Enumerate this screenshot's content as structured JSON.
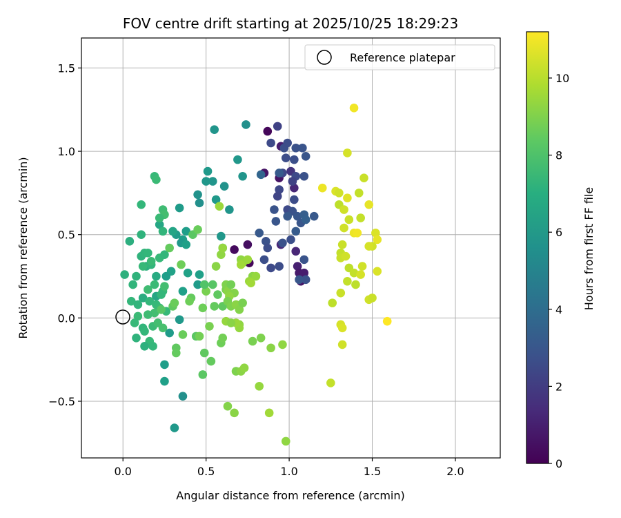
{
  "chart_data": {
    "type": "scatter",
    "title": "FOV centre drift starting at 2025/10/25 18:29:23",
    "xlabel": "Angular distance from reference (arcmin)",
    "ylabel": "Rotation from reference (arcmin)",
    "xlim": [
      -0.25,
      2.27
    ],
    "ylim": [
      -0.84,
      1.68
    ],
    "xticks": [
      0.0,
      0.5,
      1.0,
      1.5,
      2.0
    ],
    "xtick_labels": [
      "0.0",
      "0.5",
      "1.0",
      "1.5",
      "2.0"
    ],
    "yticks": [
      -0.5,
      0.0,
      0.5,
      1.0,
      1.5
    ],
    "ytick_labels": [
      "−0.5",
      "0.0",
      "0.5",
      "1.0",
      "1.5"
    ],
    "grid": true,
    "legend": {
      "position": "top-right",
      "entries": [
        "Reference platepar"
      ]
    },
    "reference_point": {
      "x": 0.0,
      "y": 0.0,
      "label": "Reference platepar"
    },
    "colorbar": {
      "label": "Hours from first FF file",
      "colormap": "viridis",
      "range": [
        0,
        11.2
      ],
      "ticks": [
        0,
        2,
        4,
        6,
        8,
        10
      ],
      "tick_labels": [
        "0",
        "2",
        "4",
        "6",
        "8",
        "10"
      ]
    },
    "points": [
      {
        "x": 0.87,
        "y": 1.12,
        "h": 0.2
      },
      {
        "x": 0.95,
        "y": 1.03,
        "h": 0.9
      },
      {
        "x": 0.94,
        "y": 0.84,
        "h": 0.6
      },
      {
        "x": 1.03,
        "y": 0.78,
        "h": 1.2
      },
      {
        "x": 1.01,
        "y": 0.88,
        "h": 1.7
      },
      {
        "x": 1.04,
        "y": 0.4,
        "h": 1.2
      },
      {
        "x": 0.95,
        "y": 0.44,
        "h": 1.3
      },
      {
        "x": 1.05,
        "y": 0.31,
        "h": 1.0
      },
      {
        "x": 1.06,
        "y": 0.27,
        "h": 0.8
      },
      {
        "x": 1.09,
        "y": 0.27,
        "h": 0.9
      },
      {
        "x": 1.07,
        "y": 0.22,
        "h": 0.7
      },
      {
        "x": 0.75,
        "y": 0.44,
        "h": 0.4
      },
      {
        "x": 0.67,
        "y": 0.41,
        "h": 0.3
      },
      {
        "x": 0.76,
        "y": 0.33,
        "h": 0.2
      },
      {
        "x": 0.85,
        "y": 0.87,
        "h": 0.6
      },
      {
        "x": 0.93,
        "y": 1.15,
        "h": 2.2
      },
      {
        "x": 0.89,
        "y": 1.05,
        "h": 2.5
      },
      {
        "x": 0.97,
        "y": 1.02,
        "h": 2.7
      },
      {
        "x": 0.99,
        "y": 1.05,
        "h": 2.6
      },
      {
        "x": 1.04,
        "y": 1.02,
        "h": 2.8
      },
      {
        "x": 1.08,
        "y": 1.02,
        "h": 2.9
      },
      {
        "x": 1.03,
        "y": 0.95,
        "h": 2.7
      },
      {
        "x": 0.98,
        "y": 0.96,
        "h": 2.6
      },
      {
        "x": 0.96,
        "y": 0.87,
        "h": 2.4
      },
      {
        "x": 1.04,
        "y": 0.85,
        "h": 2.5
      },
      {
        "x": 1.09,
        "y": 0.85,
        "h": 2.8
      },
      {
        "x": 1.02,
        "y": 0.82,
        "h": 2.2
      },
      {
        "x": 0.94,
        "y": 0.77,
        "h": 2.4
      },
      {
        "x": 0.93,
        "y": 0.73,
        "h": 2.3
      },
      {
        "x": 0.91,
        "y": 0.65,
        "h": 2.9
      },
      {
        "x": 0.99,
        "y": 0.65,
        "h": 2.5
      },
      {
        "x": 1.03,
        "y": 0.71,
        "h": 2.6
      },
      {
        "x": 1.02,
        "y": 0.64,
        "h": 2.8
      },
      {
        "x": 0.99,
        "y": 0.61,
        "h": 3.1
      },
      {
        "x": 1.05,
        "y": 0.61,
        "h": 3.0
      },
      {
        "x": 1.09,
        "y": 0.62,
        "h": 3.3
      },
      {
        "x": 1.07,
        "y": 0.57,
        "h": 3.0
      },
      {
        "x": 1.1,
        "y": 0.59,
        "h": 3.4
      },
      {
        "x": 1.15,
        "y": 0.61,
        "h": 3.1
      },
      {
        "x": 0.92,
        "y": 0.58,
        "h": 3.0
      },
      {
        "x": 1.04,
        "y": 0.52,
        "h": 3.2
      },
      {
        "x": 1.01,
        "y": 0.47,
        "h": 2.7
      },
      {
        "x": 0.82,
        "y": 0.51,
        "h": 3.1
      },
      {
        "x": 0.86,
        "y": 0.46,
        "h": 2.8
      },
      {
        "x": 0.87,
        "y": 0.42,
        "h": 2.6
      },
      {
        "x": 0.96,
        "y": 0.45,
        "h": 2.8
      },
      {
        "x": 0.85,
        "y": 0.35,
        "h": 2.7
      },
      {
        "x": 0.89,
        "y": 0.3,
        "h": 2.5
      },
      {
        "x": 0.94,
        "y": 0.31,
        "h": 2.6
      },
      {
        "x": 1.09,
        "y": 0.35,
        "h": 2.9
      },
      {
        "x": 1.1,
        "y": 0.23,
        "h": 2.8
      },
      {
        "x": 1.06,
        "y": 0.23,
        "h": 3.0
      },
      {
        "x": 1.1,
        "y": 0.97,
        "h": 3.0
      },
      {
        "x": 0.83,
        "y": 0.86,
        "h": 3.6
      },
      {
        "x": 0.94,
        "y": 0.87,
        "h": 3.2
      },
      {
        "x": 0.74,
        "y": 1.16,
        "h": 5.6
      },
      {
        "x": 0.55,
        "y": 1.13,
        "h": 5.8
      },
      {
        "x": 0.69,
        "y": 0.95,
        "h": 5.9
      },
      {
        "x": 0.51,
        "y": 0.88,
        "h": 6.0
      },
      {
        "x": 0.54,
        "y": 0.82,
        "h": 5.8
      },
      {
        "x": 0.5,
        "y": 0.82,
        "h": 5.9
      },
      {
        "x": 0.61,
        "y": 0.79,
        "h": 5.7
      },
      {
        "x": 0.72,
        "y": 0.85,
        "h": 5.8
      },
      {
        "x": 0.45,
        "y": 0.74,
        "h": 5.7
      },
      {
        "x": 0.56,
        "y": 0.71,
        "h": 6.0
      },
      {
        "x": 0.46,
        "y": 0.69,
        "h": 5.6
      },
      {
        "x": 0.64,
        "y": 0.65,
        "h": 5.8
      },
      {
        "x": 0.34,
        "y": 0.66,
        "h": 6.1
      },
      {
        "x": 0.59,
        "y": 0.49,
        "h": 5.9
      },
      {
        "x": 0.38,
        "y": 0.52,
        "h": 6.2
      },
      {
        "x": 0.6,
        "y": 0.42,
        "h": 6.0
      },
      {
        "x": 0.32,
        "y": 0.5,
        "h": 6.1
      },
      {
        "x": 0.36,
        "y": 0.47,
        "h": 6.2
      },
      {
        "x": 0.35,
        "y": 0.45,
        "h": 6.0
      },
      {
        "x": 0.38,
        "y": 0.44,
        "h": 6.3
      },
      {
        "x": 0.3,
        "y": 0.52,
        "h": 6.5
      },
      {
        "x": 0.22,
        "y": 0.56,
        "h": 6.6
      },
      {
        "x": 0.29,
        "y": 0.28,
        "h": 6.4
      },
      {
        "x": 0.39,
        "y": 0.27,
        "h": 6.4
      },
      {
        "x": 0.36,
        "y": 0.16,
        "h": 6.3
      },
      {
        "x": 0.26,
        "y": 0.25,
        "h": 6.2
      },
      {
        "x": 0.46,
        "y": 0.26,
        "h": 6.3
      },
      {
        "x": 0.45,
        "y": 0.2,
        "h": 6.1
      },
      {
        "x": 0.34,
        "y": -0.01,
        "h": 6.0
      },
      {
        "x": 0.28,
        "y": -0.09,
        "h": 6.1
      },
      {
        "x": 0.25,
        "y": -0.28,
        "h": 6.2
      },
      {
        "x": 0.25,
        "y": -0.38,
        "h": 6.3
      },
      {
        "x": 0.36,
        "y": -0.47,
        "h": 5.6
      },
      {
        "x": 0.31,
        "y": -0.66,
        "h": 6.0
      },
      {
        "x": 0.2,
        "y": 0.13,
        "h": 6.6
      },
      {
        "x": 0.12,
        "y": 0.12,
        "h": 6.9
      },
      {
        "x": 0.14,
        "y": 0.31,
        "h": 7.0
      },
      {
        "x": 0.2,
        "y": 0.25,
        "h": 6.8
      },
      {
        "x": 0.19,
        "y": 0.85,
        "h": 7.5
      },
      {
        "x": 0.2,
        "y": 0.83,
        "h": 7.6
      },
      {
        "x": 0.11,
        "y": 0.68,
        "h": 7.4
      },
      {
        "x": 0.24,
        "y": 0.65,
        "h": 7.7
      },
      {
        "x": 0.25,
        "y": 0.62,
        "h": 7.8
      },
      {
        "x": 0.22,
        "y": 0.6,
        "h": 7.6
      },
      {
        "x": 0.11,
        "y": 0.5,
        "h": 7.2
      },
      {
        "x": 0.04,
        "y": 0.46,
        "h": 7.0
      },
      {
        "x": 0.24,
        "y": 0.52,
        "h": 7.3
      },
      {
        "x": 0.11,
        "y": 0.37,
        "h": 7.2
      },
      {
        "x": 0.13,
        "y": 0.39,
        "h": 7.3
      },
      {
        "x": 0.15,
        "y": 0.39,
        "h": 7.4
      },
      {
        "x": 0.17,
        "y": 0.32,
        "h": 7.3
      },
      {
        "x": 0.22,
        "y": 0.36,
        "h": 7.5
      },
      {
        "x": 0.25,
        "y": 0.38,
        "h": 7.4
      },
      {
        "x": 0.17,
        "y": 0.34,
        "h": 7.6
      },
      {
        "x": 0.01,
        "y": 0.26,
        "h": 7.1
      },
      {
        "x": 0.08,
        "y": 0.25,
        "h": 7.2
      },
      {
        "x": 0.06,
        "y": 0.2,
        "h": 7.3
      },
      {
        "x": 0.12,
        "y": 0.31,
        "h": 7.5
      },
      {
        "x": 0.15,
        "y": 0.17,
        "h": 7.7
      },
      {
        "x": 0.19,
        "y": 0.2,
        "h": 7.6
      },
      {
        "x": 0.24,
        "y": 0.16,
        "h": 7.5
      },
      {
        "x": 0.25,
        "y": 0.19,
        "h": 7.8
      },
      {
        "x": 0.23,
        "y": 0.14,
        "h": 7.4
      },
      {
        "x": 0.05,
        "y": 0.1,
        "h": 7.4
      },
      {
        "x": 0.09,
        "y": 0.08,
        "h": 7.3
      },
      {
        "x": 0.16,
        "y": 0.1,
        "h": 7.4
      },
      {
        "x": 0.2,
        "y": 0.08,
        "h": 7.5
      },
      {
        "x": 0.22,
        "y": 0.06,
        "h": 7.6
      },
      {
        "x": 0.26,
        "y": 0.04,
        "h": 7.5
      },
      {
        "x": 0.19,
        "y": 0.03,
        "h": 7.8
      },
      {
        "x": 0.15,
        "y": 0.02,
        "h": 7.7
      },
      {
        "x": 0.09,
        "y": 0.01,
        "h": 7.6
      },
      {
        "x": 0.07,
        "y": -0.03,
        "h": 7.5
      },
      {
        "x": 0.12,
        "y": -0.06,
        "h": 7.3
      },
      {
        "x": 0.13,
        "y": -0.08,
        "h": 7.4
      },
      {
        "x": 0.18,
        "y": -0.05,
        "h": 7.6
      },
      {
        "x": 0.21,
        "y": -0.03,
        "h": 7.8
      },
      {
        "x": 0.24,
        "y": -0.06,
        "h": 7.9
      },
      {
        "x": 0.16,
        "y": -0.14,
        "h": 7.5
      },
      {
        "x": 0.08,
        "y": -0.12,
        "h": 7.2
      },
      {
        "x": 0.13,
        "y": -0.17,
        "h": 7.1
      },
      {
        "x": 0.18,
        "y": -0.17,
        "h": 7.4
      },
      {
        "x": 0.23,
        "y": 0.05,
        "h": 8.2
      },
      {
        "x": 0.3,
        "y": 0.07,
        "h": 8.4
      },
      {
        "x": 0.31,
        "y": 0.09,
        "h": 8.6
      },
      {
        "x": 0.28,
        "y": 0.42,
        "h": 8.5
      },
      {
        "x": 0.42,
        "y": 0.5,
        "h": 8.3
      },
      {
        "x": 0.45,
        "y": 0.53,
        "h": 8.6
      },
      {
        "x": 0.35,
        "y": 0.32,
        "h": 8.7
      },
      {
        "x": 0.41,
        "y": 0.12,
        "h": 8.5
      },
      {
        "x": 0.4,
        "y": 0.1,
        "h": 8.7
      },
      {
        "x": 0.36,
        "y": -0.1,
        "h": 8.6
      },
      {
        "x": 0.32,
        "y": -0.18,
        "h": 8.4
      },
      {
        "x": 0.32,
        "y": -0.21,
        "h": 8.5
      },
      {
        "x": 0.44,
        "y": -0.11,
        "h": 8.3
      },
      {
        "x": 0.46,
        "y": -0.11,
        "h": 8.8
      },
      {
        "x": 0.48,
        "y": 0.06,
        "h": 8.7
      },
      {
        "x": 0.49,
        "y": -0.21,
        "h": 8.4
      },
      {
        "x": 0.48,
        "y": -0.34,
        "h": 8.3
      },
      {
        "x": 0.53,
        "y": -0.26,
        "h": 8.5
      },
      {
        "x": 0.52,
        "y": -0.05,
        "h": 8.9
      },
      {
        "x": 0.5,
        "y": 0.16,
        "h": 8.9
      },
      {
        "x": 0.49,
        "y": 0.2,
        "h": 8.1
      },
      {
        "x": 0.54,
        "y": 0.2,
        "h": 8.2
      },
      {
        "x": 0.57,
        "y": 0.14,
        "h": 8.4
      },
      {
        "x": 0.55,
        "y": 0.07,
        "h": 8.5
      },
      {
        "x": 0.6,
        "y": 0.07,
        "h": 8.4
      },
      {
        "x": 0.62,
        "y": 0.17,
        "h": 8.9
      },
      {
        "x": 0.62,
        "y": 0.2,
        "h": 9.0
      },
      {
        "x": 0.63,
        "y": 0.16,
        "h": 9.2
      },
      {
        "x": 0.65,
        "y": 0.2,
        "h": 8.8
      },
      {
        "x": 0.67,
        "y": 0.15,
        "h": 9.1
      },
      {
        "x": 0.64,
        "y": 0.13,
        "h": 9.3
      },
      {
        "x": 0.63,
        "y": 0.1,
        "h": 8.9
      },
      {
        "x": 0.65,
        "y": 0.07,
        "h": 9.0
      },
      {
        "x": 0.68,
        "y": 0.08,
        "h": 9.2
      },
      {
        "x": 0.7,
        "y": 0.05,
        "h": 9.1
      },
      {
        "x": 0.72,
        "y": 0.09,
        "h": 8.9
      },
      {
        "x": 0.7,
        "y": -0.04,
        "h": 9.3
      },
      {
        "x": 0.7,
        "y": -0.06,
        "h": 9.4
      },
      {
        "x": 0.68,
        "y": -0.03,
        "h": 9.5
      },
      {
        "x": 0.62,
        "y": -0.02,
        "h": 9.4
      },
      {
        "x": 0.65,
        "y": -0.03,
        "h": 9.2
      },
      {
        "x": 0.59,
        "y": -0.15,
        "h": 8.7
      },
      {
        "x": 0.6,
        "y": -0.12,
        "h": 8.8
      },
      {
        "x": 0.68,
        "y": -0.32,
        "h": 9.0
      },
      {
        "x": 0.71,
        "y": -0.32,
        "h": 9.2
      },
      {
        "x": 0.73,
        "y": -0.3,
        "h": 9.3
      },
      {
        "x": 0.63,
        "y": -0.53,
        "h": 9.1
      },
      {
        "x": 0.67,
        "y": -0.57,
        "h": 9.2
      },
      {
        "x": 0.82,
        "y": -0.41,
        "h": 9.4
      },
      {
        "x": 0.88,
        "y": -0.57,
        "h": 9.6
      },
      {
        "x": 0.98,
        "y": -0.74,
        "h": 9.3
      },
      {
        "x": 0.78,
        "y": -0.14,
        "h": 8.9
      },
      {
        "x": 0.83,
        "y": -0.12,
        "h": 9.0
      },
      {
        "x": 0.89,
        "y": -0.18,
        "h": 9.2
      },
      {
        "x": 0.96,
        "y": -0.16,
        "h": 9.3
      },
      {
        "x": 0.58,
        "y": 0.67,
        "h": 9.5
      },
      {
        "x": 0.59,
        "y": 0.38,
        "h": 9.3
      },
      {
        "x": 0.6,
        "y": 0.42,
        "h": 9.4
      },
      {
        "x": 0.56,
        "y": 0.31,
        "h": 9.2
      },
      {
        "x": 0.71,
        "y": 0.35,
        "h": 9.3
      },
      {
        "x": 0.72,
        "y": 0.33,
        "h": 9.4
      },
      {
        "x": 0.71,
        "y": 0.32,
        "h": 9.6
      },
      {
        "x": 0.75,
        "y": 0.35,
        "h": 9.5
      },
      {
        "x": 0.78,
        "y": 0.25,
        "h": 9.2
      },
      {
        "x": 0.8,
        "y": 0.25,
        "h": 9.4
      },
      {
        "x": 0.76,
        "y": 0.22,
        "h": 9.5
      },
      {
        "x": 0.77,
        "y": 0.21,
        "h": 9.6
      },
      {
        "x": 1.39,
        "y": 1.26,
        "h": 11.0
      },
      {
        "x": 1.35,
        "y": 0.99,
        "h": 10.5
      },
      {
        "x": 1.2,
        "y": 0.78,
        "h": 10.9
      },
      {
        "x": 1.28,
        "y": 0.76,
        "h": 10.6
      },
      {
        "x": 1.3,
        "y": 0.75,
        "h": 10.4
      },
      {
        "x": 1.35,
        "y": 0.72,
        "h": 10.7
      },
      {
        "x": 1.45,
        "y": 0.84,
        "h": 10.3
      },
      {
        "x": 1.42,
        "y": 0.75,
        "h": 10.2
      },
      {
        "x": 1.3,
        "y": 0.68,
        "h": 10.1
      },
      {
        "x": 1.33,
        "y": 0.65,
        "h": 10.4
      },
      {
        "x": 1.48,
        "y": 0.68,
        "h": 10.8
      },
      {
        "x": 1.36,
        "y": 0.59,
        "h": 10.3
      },
      {
        "x": 1.43,
        "y": 0.6,
        "h": 10.2
      },
      {
        "x": 1.33,
        "y": 0.54,
        "h": 10.4
      },
      {
        "x": 1.39,
        "y": 0.51,
        "h": 10.9
      },
      {
        "x": 1.41,
        "y": 0.51,
        "h": 11.0
      },
      {
        "x": 1.52,
        "y": 0.51,
        "h": 10.6
      },
      {
        "x": 1.53,
        "y": 0.47,
        "h": 10.8
      },
      {
        "x": 1.32,
        "y": 0.44,
        "h": 10.3
      },
      {
        "x": 1.5,
        "y": 0.43,
        "h": 10.4
      },
      {
        "x": 1.48,
        "y": 0.43,
        "h": 10.5
      },
      {
        "x": 1.31,
        "y": 0.39,
        "h": 10.2
      },
      {
        "x": 1.31,
        "y": 0.36,
        "h": 10.3
      },
      {
        "x": 1.34,
        "y": 0.37,
        "h": 10.4
      },
      {
        "x": 1.36,
        "y": 0.3,
        "h": 10.1
      },
      {
        "x": 1.39,
        "y": 0.27,
        "h": 10.2
      },
      {
        "x": 1.44,
        "y": 0.31,
        "h": 10.4
      },
      {
        "x": 1.43,
        "y": 0.26,
        "h": 10.5
      },
      {
        "x": 1.53,
        "y": 0.28,
        "h": 10.6
      },
      {
        "x": 1.35,
        "y": 0.22,
        "h": 10.2
      },
      {
        "x": 1.4,
        "y": 0.2,
        "h": 10.1
      },
      {
        "x": 1.48,
        "y": 0.11,
        "h": 10.4
      },
      {
        "x": 1.5,
        "y": 0.12,
        "h": 10.3
      },
      {
        "x": 1.26,
        "y": 0.09,
        "h": 10.1
      },
      {
        "x": 1.31,
        "y": 0.15,
        "h": 10.3
      },
      {
        "x": 1.31,
        "y": -0.04,
        "h": 10.5
      },
      {
        "x": 1.32,
        "y": -0.06,
        "h": 10.6
      },
      {
        "x": 1.32,
        "y": -0.16,
        "h": 10.4
      },
      {
        "x": 1.25,
        "y": -0.39,
        "h": 10.2
      },
      {
        "x": 1.59,
        "y": -0.02,
        "h": 11.2
      }
    ]
  }
}
